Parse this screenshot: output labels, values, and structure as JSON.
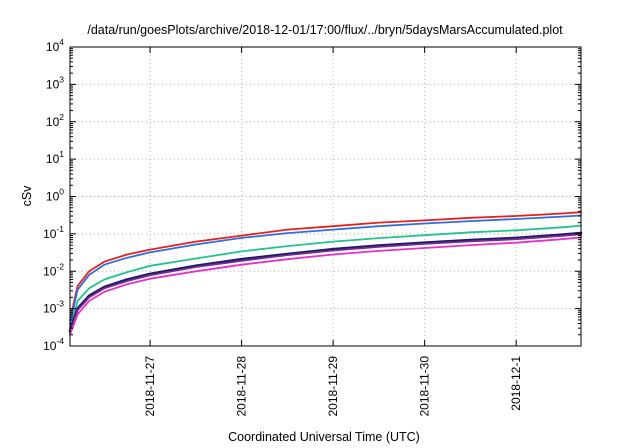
{
  "chart_data": {
    "type": "line",
    "title": "/data/run/goesPlots/archive/2018-12-01/17:00/flux/../bryn/5daysMarsAccumulated.plot",
    "xlabel": "Coordinated Universal Time (UTC)",
    "ylabel": "cSv",
    "y_scale": "log",
    "ylim": [
      0.0001,
      10000
    ],
    "y_ticks": [
      {
        "base": "10",
        "exp": "-4"
      },
      {
        "base": "10",
        "exp": "-3"
      },
      {
        "base": "10",
        "exp": "-2"
      },
      {
        "base": "10",
        "exp": "-1"
      },
      {
        "base": "10",
        "exp": "0"
      },
      {
        "base": "10",
        "exp": "1"
      },
      {
        "base": "10",
        "exp": "2"
      },
      {
        "base": "10",
        "exp": "3"
      },
      {
        "base": "10",
        "exp": "4"
      }
    ],
    "xlim": [
      "2018-11-26 03:00",
      "2018-12-01 17:00"
    ],
    "x_ticks": [
      "2018-11-27",
      "2018-11-28",
      "2018-11-29",
      "2018-11-30",
      "2018-12-1"
    ],
    "x_tick_dates": [
      "2018-11-27 00:00",
      "2018-11-28 00:00",
      "2018-11-29 00:00",
      "2018-11-30 00:00",
      "2018-12-01 00:00"
    ],
    "grid": true,
    "x": [
      "2018-11-26 03:00",
      "2018-11-26 05:00",
      "2018-11-26 08:00",
      "2018-11-26 12:00",
      "2018-11-26 18:00",
      "2018-11-27 00:00",
      "2018-11-27 12:00",
      "2018-11-28 00:00",
      "2018-11-28 12:00",
      "2018-11-29 00:00",
      "2018-11-29 12:00",
      "2018-11-30 00:00",
      "2018-11-30 12:00",
      "2018-12-01 00:00",
      "2018-12-01 12:00",
      "2018-12-01 17:00"
    ],
    "series": [
      {
        "color": "#e8201c",
        "values": [
          0.0005,
          0.004,
          0.01,
          0.018,
          0.028,
          0.038,
          0.062,
          0.09,
          0.13,
          0.16,
          0.2,
          0.23,
          0.27,
          0.3,
          0.35,
          0.38
        ]
      },
      {
        "color": "#2e6fe0",
        "values": [
          0.0004,
          0.0032,
          0.008,
          0.015,
          0.023,
          0.032,
          0.052,
          0.078,
          0.105,
          0.13,
          0.16,
          0.19,
          0.22,
          0.25,
          0.29,
          0.31
        ]
      },
      {
        "color": "#22c38e",
        "values": [
          0.0003,
          0.0016,
          0.0035,
          0.006,
          0.0095,
          0.014,
          0.022,
          0.034,
          0.047,
          0.062,
          0.077,
          0.092,
          0.11,
          0.125,
          0.15,
          0.165
        ]
      },
      {
        "color": "#1a1a6e",
        "values": [
          0.00025,
          0.001,
          0.0022,
          0.0038,
          0.006,
          0.0085,
          0.014,
          0.021,
          0.029,
          0.039,
          0.049,
          0.058,
          0.068,
          0.078,
          0.095,
          0.105
        ]
      },
      {
        "color": "#7a2a8a",
        "values": [
          0.00023,
          0.0009,
          0.002,
          0.0035,
          0.0055,
          0.0078,
          0.013,
          0.019,
          0.027,
          0.036,
          0.045,
          0.054,
          0.063,
          0.072,
          0.088,
          0.098
        ]
      },
      {
        "color": "#e830c8",
        "values": [
          0.0002,
          0.0007,
          0.0016,
          0.0028,
          0.0045,
          0.0063,
          0.01,
          0.015,
          0.021,
          0.028,
          0.035,
          0.042,
          0.05,
          0.058,
          0.072,
          0.08
        ]
      }
    ]
  }
}
